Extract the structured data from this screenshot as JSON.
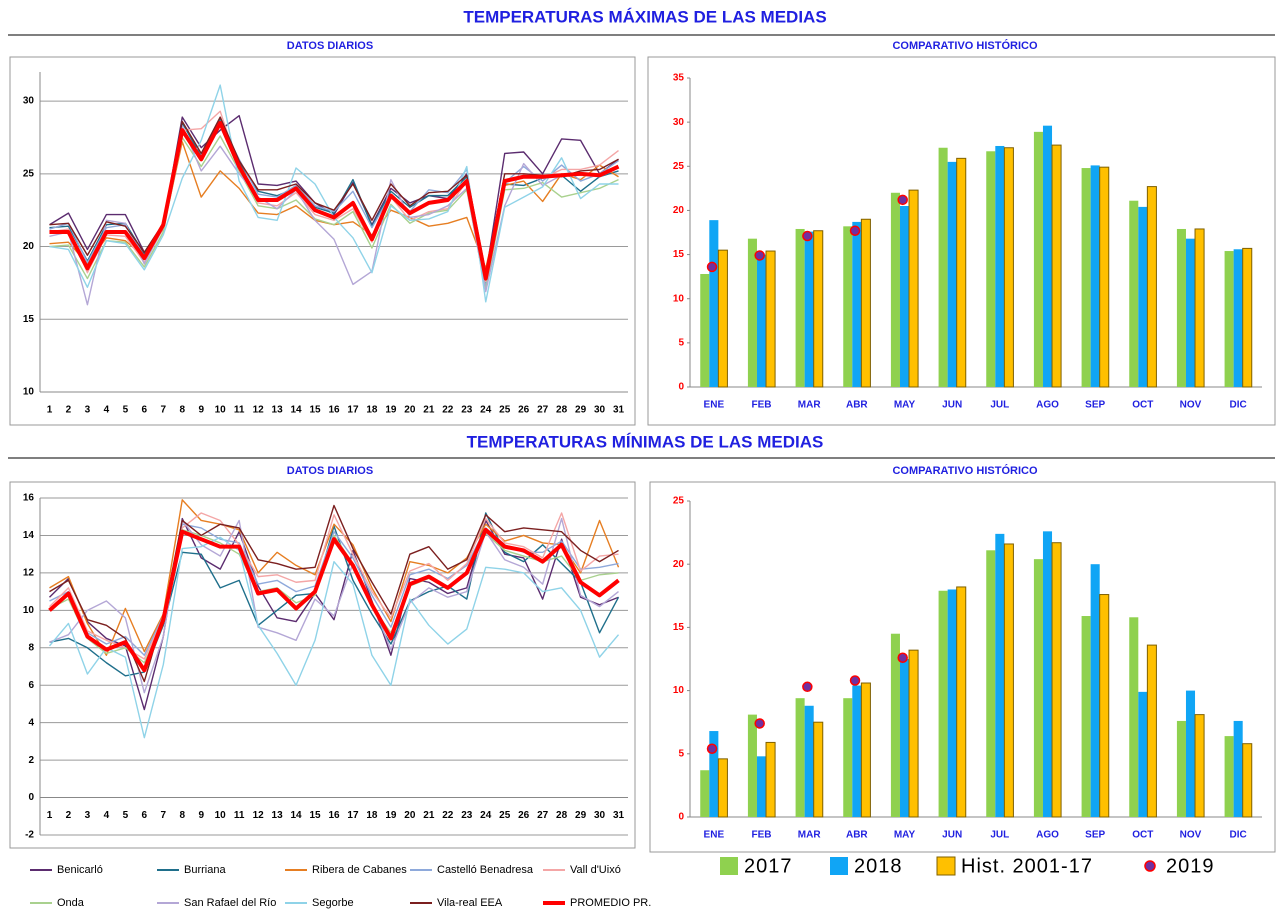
{
  "header": {
    "sections": [
      "TEMPERATURAS MÁXIMAS DE LAS MEDIAS",
      "TEMPERATURAS MÍNIMAS DE LAS MEDIAS"
    ]
  },
  "chart_data": [
    {
      "type": "line",
      "title": "DATOS DIARIOS",
      "categories": [
        "1",
        "2",
        "3",
        "4",
        "5",
        "6",
        "7",
        "8",
        "9",
        "10",
        "11",
        "12",
        "13",
        "14",
        "15",
        "16",
        "17",
        "18",
        "19",
        "20",
        "21",
        "22",
        "23",
        "24",
        "25",
        "26",
        "27",
        "28",
        "29",
        "30",
        "31"
      ],
      "ylim": [
        10,
        32
      ],
      "yticks": [
        10,
        15,
        20,
        25,
        30
      ],
      "grid": true,
      "series": [
        {
          "color": "#5b2c6f",
          "values": [
            21.5,
            22.3,
            19.8,
            22.2,
            22.2,
            19.6,
            21.5,
            28.9,
            26.8,
            28.0,
            29.0,
            24.3,
            24.2,
            24.5,
            23.0,
            22.2,
            24.4,
            21.5,
            24.0,
            23.0,
            23.5,
            23.3,
            25.0,
            18.0,
            26.4,
            26.5,
            25.0,
            27.4,
            27.3,
            25.0,
            26.0
          ]
        },
        {
          "color": "#1f6f8b",
          "values": [
            21.3,
            21.4,
            19.0,
            21.5,
            21.6,
            19.5,
            21.4,
            28.5,
            26.2,
            28.8,
            25.8,
            23.8,
            23.5,
            24.0,
            22.7,
            22.3,
            24.6,
            21.4,
            23.8,
            22.7,
            23.5,
            23.5,
            24.8,
            17.5,
            24.3,
            24.2,
            24.7,
            24.9,
            23.8,
            24.8,
            25.2
          ]
        },
        {
          "color": "#e67e22",
          "values": [
            20.2,
            20.3,
            18.8,
            20.6,
            20.4,
            19.3,
            21.2,
            27.2,
            23.4,
            25.2,
            24.0,
            22.3,
            22.2,
            22.8,
            21.8,
            21.5,
            21.7,
            20.8,
            22.5,
            22.0,
            21.4,
            21.6,
            22.0,
            18.5,
            24.2,
            24.5,
            23.1,
            25.0,
            24.6,
            25.6,
            24.8
          ]
        },
        {
          "color": "#8ea9db",
          "values": [
            21.2,
            21.6,
            18.9,
            21.3,
            21.5,
            19.3,
            21.6,
            28.2,
            26.0,
            28.6,
            26.0,
            23.6,
            23.4,
            24.2,
            22.8,
            22.4,
            23.8,
            21.3,
            23.6,
            22.4,
            23.9,
            23.7,
            25.3,
            17.2,
            24.4,
            25.5,
            24.5,
            25.6,
            24.5,
            25.0,
            25.9
          ]
        },
        {
          "color": "#f4a6a6",
          "values": [
            21.0,
            21.2,
            18.2,
            20.8,
            20.7,
            18.9,
            21.3,
            28.0,
            28.1,
            29.3,
            25.4,
            23.0,
            22.8,
            23.7,
            22.2,
            21.8,
            22.6,
            20.3,
            23.4,
            21.8,
            22.4,
            22.6,
            24.5,
            17.6,
            24.6,
            24.9,
            24.7,
            25.3,
            25.3,
            25.6,
            26.6
          ]
        },
        {
          "color": "#a9d18e",
          "values": [
            20.0,
            20.1,
            17.8,
            20.4,
            20.3,
            18.6,
            21.0,
            27.5,
            25.5,
            27.6,
            25.2,
            22.8,
            22.6,
            23.2,
            21.9,
            21.5,
            22.4,
            19.9,
            22.9,
            21.6,
            22.3,
            22.5,
            23.9,
            17.0,
            23.9,
            24.0,
            24.4,
            23.4,
            23.7,
            24.0,
            24.6
          ]
        },
        {
          "color": "#b4a7d6",
          "values": [
            20.7,
            21.0,
            16.0,
            21.8,
            21.6,
            18.8,
            21.3,
            28.3,
            25.2,
            26.9,
            25.0,
            23.4,
            22.6,
            23.9,
            21.8,
            20.5,
            17.4,
            18.3,
            24.6,
            22.0,
            22.2,
            22.8,
            24.0,
            16.9,
            22.8,
            25.7,
            24.2,
            24.9,
            24.9,
            24.8,
            25.4
          ]
        },
        {
          "color": "#8fd3e8",
          "values": [
            20.0,
            19.8,
            17.2,
            20.4,
            20.2,
            18.4,
            20.8,
            24.7,
            27.3,
            31.1,
            24.5,
            22.0,
            21.8,
            25.4,
            24.3,
            22.0,
            20.6,
            18.2,
            22.8,
            21.8,
            21.9,
            22.4,
            25.5,
            16.2,
            22.7,
            23.4,
            24.1,
            26.1,
            23.3,
            24.3,
            24.3
          ]
        },
        {
          "color": "#7b1f1f",
          "values": [
            21.5,
            21.6,
            19.4,
            21.7,
            21.4,
            19.6,
            21.6,
            28.6,
            26.4,
            28.9,
            25.9,
            23.9,
            23.9,
            24.3,
            23.0,
            22.5,
            24.3,
            21.8,
            24.3,
            22.8,
            23.7,
            23.8,
            24.9,
            18.2,
            25.0,
            25.0,
            24.9,
            24.8,
            25.2,
            25.3,
            26.0
          ]
        },
        {
          "color": "#ff0000",
          "width": 4,
          "values": [
            21.0,
            21.0,
            18.5,
            21.0,
            21.0,
            19.2,
            21.5,
            28.0,
            26.0,
            28.5,
            25.5,
            23.2,
            23.2,
            24.0,
            22.5,
            22.0,
            23.0,
            20.5,
            23.5,
            22.3,
            23.0,
            23.2,
            24.5,
            17.8,
            24.5,
            24.8,
            24.8,
            24.9,
            25.0,
            24.9,
            25.5
          ]
        }
      ]
    },
    {
      "type": "bar",
      "title": "COMPARATIVO HISTÓRICO",
      "categories": [
        "ENE",
        "FEB",
        "MAR",
        "ABR",
        "MAY",
        "JUN",
        "JUL",
        "AGO",
        "SEP",
        "OCT",
        "NOV",
        "DIC"
      ],
      "ylim": [
        0,
        35
      ],
      "yticks": [
        0,
        5,
        10,
        15,
        20,
        25,
        30,
        35
      ],
      "grid": false,
      "tick_color": "#ff0000",
      "category_color": "#1f1fe0",
      "series": [
        {
          "color": "#8fd14f",
          "values": [
            12.8,
            16.8,
            17.9,
            18.2,
            22.0,
            27.1,
            26.7,
            28.9,
            24.8,
            21.1,
            17.9,
            15.4
          ]
        },
        {
          "color": "#10a5f5",
          "values": [
            18.9,
            15.0,
            17.6,
            18.7,
            20.5,
            25.5,
            27.3,
            29.6,
            25.1,
            20.4,
            16.8,
            15.6
          ]
        },
        {
          "color": "#ffc000",
          "edgecolor": "#7f6000",
          "values": [
            15.5,
            15.4,
            17.7,
            19.0,
            22.3,
            25.9,
            27.1,
            27.4,
            24.9,
            22.7,
            17.9,
            15.7
          ]
        },
        {
          "type": "scatter",
          "color": "#7030a0",
          "edgecolor": "#ff0000",
          "values": [
            13.6,
            14.9,
            17.1,
            17.7,
            21.2,
            null,
            null,
            null,
            null,
            null,
            null,
            null
          ]
        }
      ]
    },
    {
      "type": "line",
      "title": "DATOS DIARIOS",
      "categories": [
        "1",
        "2",
        "3",
        "4",
        "5",
        "6",
        "7",
        "8",
        "9",
        "10",
        "11",
        "12",
        "13",
        "14",
        "15",
        "16",
        "17",
        "18",
        "19",
        "20",
        "21",
        "22",
        "23",
        "24",
        "25",
        "26",
        "27",
        "28",
        "29",
        "30",
        "31"
      ],
      "ylim": [
        -2,
        16
      ],
      "yticks": [
        -2,
        0,
        2,
        4,
        6,
        8,
        10,
        12,
        14,
        16
      ],
      "grid": true,
      "series": [
        {
          "name": "Benicarló",
          "color": "#5b2c6f",
          "values": [
            10.7,
            11.7,
            9.4,
            8.5,
            8.1,
            4.7,
            8.6,
            14.9,
            12.8,
            12.2,
            14.2,
            11.3,
            9.6,
            9.4,
            10.9,
            9.5,
            13.2,
            10.5,
            7.6,
            11.7,
            11.5,
            10.9,
            11.2,
            14.8,
            13.0,
            12.8,
            10.6,
            13.8,
            10.7,
            10.3,
            10.7
          ]
        },
        {
          "name": "Burriana",
          "color": "#1f6f8b",
          "values": [
            8.3,
            8.5,
            8.0,
            7.2,
            6.5,
            6.7,
            9.2,
            13.1,
            13.0,
            11.2,
            11.6,
            9.2,
            10.0,
            10.8,
            10.9,
            14.5,
            11.6,
            9.8,
            8.2,
            10.5,
            11.0,
            11.3,
            10.6,
            15.2,
            13.1,
            12.6,
            13.5,
            12.5,
            11.5,
            8.8,
            10.7
          ]
        },
        {
          "name": "Ribera de Cabanes",
          "color": "#e67e22",
          "values": [
            11.2,
            11.8,
            9.3,
            7.6,
            10.1,
            7.8,
            9.8,
            15.9,
            14.8,
            14.6,
            14.3,
            12.0,
            13.1,
            12.4,
            11.9,
            14.6,
            13.5,
            11.2,
            9.4,
            12.6,
            12.4,
            12.0,
            12.8,
            14.6,
            13.7,
            14.0,
            13.6,
            13.5,
            12.0,
            14.8,
            12.3
          ]
        },
        {
          "name": "Castelló Benadresa",
          "color": "#8ea9db",
          "values": [
            10.5,
            11.0,
            8.8,
            8.2,
            8.6,
            7.6,
            9.7,
            14.6,
            14.4,
            13.8,
            13.6,
            11.4,
            11.6,
            11.0,
            11.3,
            14.2,
            12.8,
            10.8,
            9.1,
            11.9,
            12.2,
            11.7,
            12.4,
            14.4,
            13.5,
            13.1,
            13.1,
            13.7,
            12.2,
            12.3,
            12.5
          ]
        },
        {
          "name": "Vall d'Uixó",
          "color": "#f4a6a6",
          "values": [
            10.2,
            11.2,
            8.9,
            8.4,
            8.0,
            7.4,
            9.6,
            14.4,
            15.2,
            14.8,
            13.5,
            11.8,
            11.9,
            11.5,
            11.6,
            15.1,
            13.0,
            11.0,
            9.6,
            12.1,
            12.5,
            11.6,
            12.5,
            14.9,
            13.6,
            13.4,
            12.8,
            15.2,
            12.1,
            12.9,
            13.0
          ]
        },
        {
          "name": "Onda",
          "color": "#a9d18e",
          "values": [
            10.1,
            10.6,
            8.5,
            7.7,
            8.0,
            7.2,
            9.4,
            14.3,
            14.0,
            13.6,
            13.0,
            11.0,
            11.2,
            10.4,
            10.8,
            14.0,
            12.5,
            10.2,
            8.8,
            11.3,
            11.7,
            11.2,
            12.0,
            14.1,
            13.2,
            12.9,
            12.6,
            12.9,
            11.6,
            11.9,
            12.0
          ]
        },
        {
          "name": "San Rafael del Río",
          "color": "#b4a7d6",
          "values": [
            8.3,
            8.7,
            10.0,
            10.5,
            9.6,
            5.6,
            8.6,
            14.8,
            13.5,
            12.9,
            14.8,
            9.1,
            8.8,
            8.4,
            10.6,
            9.7,
            12.5,
            10.4,
            7.9,
            10.4,
            11.2,
            10.7,
            11.0,
            14.2,
            12.7,
            12.3,
            11.4,
            14.9,
            10.8,
            10.2,
            11.0
          ]
        },
        {
          "name": "Segorbe",
          "color": "#8fd3e8",
          "values": [
            8.1,
            9.3,
            6.6,
            8.0,
            7.5,
            3.2,
            7.1,
            13.3,
            13.4,
            13.9,
            13.2,
            9.2,
            7.7,
            6.0,
            8.4,
            12.6,
            11.4,
            7.6,
            6.0,
            10.6,
            9.2,
            8.2,
            9.0,
            12.3,
            12.2,
            12.0,
            11.0,
            11.2,
            10.0,
            7.5,
            8.7
          ]
        },
        {
          "name": "Vila-real EEA",
          "color": "#7b1f1f",
          "values": [
            11.0,
            11.6,
            9.5,
            9.2,
            8.5,
            6.2,
            9.7,
            14.8,
            14.0,
            14.6,
            14.4,
            12.7,
            12.5,
            12.2,
            12.3,
            15.6,
            13.3,
            11.5,
            9.8,
            13.0,
            13.4,
            12.2,
            12.7,
            15.1,
            14.2,
            14.4,
            14.3,
            14.2,
            13.2,
            12.6,
            13.2
          ]
        },
        {
          "name": "PROMEDIO PR.",
          "color": "#ff0000",
          "width": 4,
          "values": [
            10.0,
            10.9,
            8.6,
            7.9,
            8.3,
            6.8,
            9.5,
            14.2,
            13.8,
            13.4,
            13.4,
            10.9,
            11.1,
            10.1,
            11.0,
            13.8,
            12.4,
            10.3,
            8.5,
            11.4,
            11.8,
            11.2,
            12.0,
            14.3,
            13.4,
            13.2,
            12.6,
            13.5,
            11.5,
            10.8,
            11.6
          ]
        }
      ]
    },
    {
      "type": "bar",
      "title": "COMPARATIVO HISTÓRICO",
      "categories": [
        "ENE",
        "FEB",
        "MAR",
        "ABR",
        "MAY",
        "JUN",
        "JUL",
        "AGO",
        "SEP",
        "OCT",
        "NOV",
        "DIC"
      ],
      "ylim": [
        0,
        25
      ],
      "yticks": [
        0,
        5,
        10,
        15,
        20,
        25
      ],
      "grid": false,
      "tick_color": "#ff0000",
      "category_color": "#1f1fe0",
      "series": [
        {
          "name": "2017",
          "color": "#8fd14f",
          "values": [
            3.7,
            8.1,
            9.4,
            9.4,
            14.5,
            17.9,
            21.1,
            20.4,
            15.9,
            15.8,
            7.6,
            6.4
          ]
        },
        {
          "name": "2018",
          "color": "#10a5f5",
          "values": [
            6.8,
            4.8,
            8.8,
            10.4,
            12.5,
            18.0,
            22.4,
            22.6,
            20.0,
            9.9,
            10.0,
            7.6
          ]
        },
        {
          "name": "Hist. 2001-17",
          "color": "#ffc000",
          "edgecolor": "#7f6000",
          "values": [
            4.6,
            5.9,
            7.5,
            10.6,
            13.2,
            18.2,
            21.6,
            21.7,
            17.6,
            13.6,
            8.1,
            5.8
          ]
        },
        {
          "name": "2019",
          "type": "scatter",
          "color": "#7030a0",
          "edgecolor": "#ff0000",
          "values": [
            5.4,
            7.4,
            10.3,
            10.8,
            12.6,
            null,
            null,
            null,
            null,
            null,
            null,
            null
          ]
        }
      ]
    }
  ]
}
